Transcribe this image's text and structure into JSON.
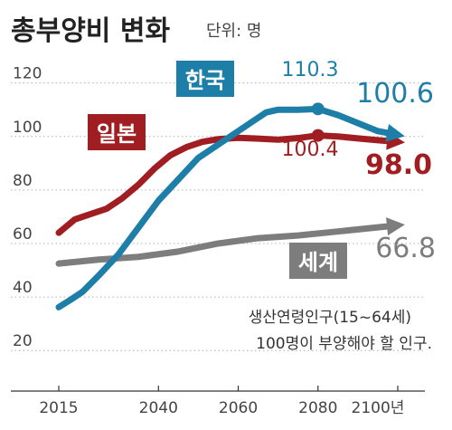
{
  "chart_data": {
    "type": "line",
    "title": "총부양비 변화",
    "unit_label": "단위: 명",
    "xlabel": "",
    "ylabel": "",
    "x_ticks": [
      "2015",
      "2040",
      "2060",
      "2080",
      "2100년"
    ],
    "x_tick_values": [
      2015,
      2040,
      2060,
      2080,
      2100
    ],
    "y_ticks": [
      20,
      40,
      60,
      80,
      100,
      120
    ],
    "xlim": [
      2015,
      2100
    ],
    "ylim": [
      15,
      128
    ],
    "grid": true,
    "series": [
      {
        "name": "한국",
        "color": "#1d7ea8",
        "x": [
          2015,
          2018,
          2021,
          2025,
          2030,
          2035,
          2040,
          2045,
          2050,
          2055,
          2060,
          2064,
          2067,
          2070,
          2075,
          2080,
          2085,
          2090,
          2095,
          2100
        ],
        "y": [
          36.2,
          39,
          42,
          48,
          56,
          66,
          76,
          84,
          92,
          97,
          102,
          106,
          109,
          110,
          110,
          110.3,
          108,
          105,
          102,
          100.6
        ],
        "marker_x": 2080,
        "marker_y": 110.3,
        "marker_label": "110.3",
        "end_label": "100.6"
      },
      {
        "name": "일본",
        "color": "#a01e22",
        "x": [
          2015,
          2019,
          2023,
          2027,
          2031,
          2035,
          2039,
          2043,
          2047,
          2051,
          2055,
          2060,
          2065,
          2070,
          2075,
          2080,
          2085,
          2090,
          2095,
          2100
        ],
        "y": [
          64,
          69,
          71,
          73,
          77,
          82,
          88,
          93,
          96,
          98,
          99,
          99.5,
          99.2,
          98.8,
          99.4,
          100.4,
          100,
          99.3,
          98.6,
          98.0
        ],
        "marker_x": 2080,
        "marker_y": 100.4,
        "marker_label": "100.4",
        "end_label": "98.0"
      },
      {
        "name": "세계",
        "color": "#7d7d7d",
        "x": [
          2015,
          2025,
          2035,
          2045,
          2055,
          2065,
          2075,
          2085,
          2100
        ],
        "y": [
          52.5,
          54,
          55,
          57,
          60,
          62,
          63,
          64.5,
          66.8
        ],
        "end_label": "66.8"
      }
    ],
    "annotation": [
      "생산연령인구(15~64세)",
      "100명이 부양해야 할 인구."
    ]
  }
}
